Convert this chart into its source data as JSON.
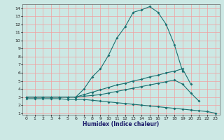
{
  "xlabel": "Humidex (Indice chaleur)",
  "bg_color": "#cce8e4",
  "grid_color": "#f0a0a0",
  "line_color": "#1a7070",
  "xlim": [
    -0.5,
    23.5
  ],
  "ylim": [
    0.8,
    14.5
  ],
  "xticks": [
    0,
    1,
    2,
    3,
    4,
    5,
    6,
    7,
    8,
    9,
    10,
    11,
    12,
    13,
    14,
    15,
    16,
    17,
    18,
    19,
    20,
    21,
    22,
    23
  ],
  "yticks": [
    1,
    2,
    3,
    4,
    5,
    6,
    7,
    8,
    9,
    10,
    11,
    12,
    13,
    14
  ],
  "line1_y": [
    3,
    3,
    3,
    3,
    3,
    3,
    3,
    4,
    5.5,
    6.5,
    8.2,
    10.3,
    11.7,
    13.5,
    13.8,
    14.2,
    13.5,
    12,
    9.5,
    6.2,
    null,
    null,
    null,
    null
  ],
  "line2_y": [
    3,
    3,
    3,
    3,
    3,
    3,
    3,
    3.3,
    3.6,
    3.9,
    4.2,
    4.5,
    4.7,
    5.0,
    5.2,
    5.5,
    5.7,
    6.0,
    6.2,
    6.5,
    4.6,
    null,
    null,
    null
  ],
  "line3_y": [
    3,
    3,
    3,
    3,
    3,
    3,
    3,
    3.1,
    3.2,
    3.3,
    3.5,
    3.7,
    3.9,
    4.1,
    4.3,
    4.5,
    4.7,
    4.9,
    5.1,
    4.6,
    3.5,
    2.5,
    null,
    null
  ],
  "line4_y": [
    2.8,
    2.8,
    2.8,
    2.8,
    2.8,
    2.7,
    2.7,
    2.7,
    2.6,
    2.5,
    2.4,
    2.3,
    2.2,
    2.1,
    2.0,
    1.9,
    1.8,
    1.7,
    1.6,
    1.5,
    1.4,
    1.3,
    1.2,
    1.0
  ]
}
